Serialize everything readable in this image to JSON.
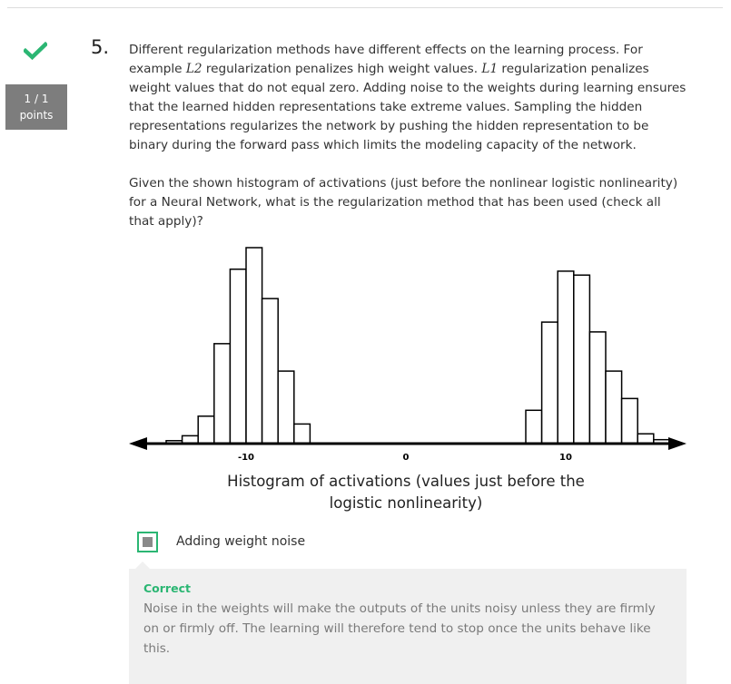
{
  "status": {
    "icon": "checkmark-icon",
    "points_score": "1 / 1",
    "points_unit": "points",
    "accent_color": "#2bb673"
  },
  "question": {
    "number": "5.",
    "p1_part1": "Different regularization methods have different effects on the learning process. For example ",
    "p1_math1": "L2",
    "p1_part2": " regularization penalizes high weight values. ",
    "p1_math2": "L1",
    "p1_part3": " regularization penalizes weight values that do not equal zero. Adding noise to the weights during learning ensures that the learned hidden representations take extreme values. Sampling the hidden representations regularizes the network by pushing the hidden representation to be binary during the forward pass which limits the modeling capacity of the network.",
    "p2": "Given the shown histogram of activations (just before the nonlinear logistic nonlinearity) for a Neural Network, what is the regularization method that has been used (check all that apply)?"
  },
  "histogram": {
    "caption_line1": "Histogram of activations (values just before the",
    "caption_line2": "logistic nonlinearity)",
    "x_ticks": [
      -10,
      0,
      10
    ],
    "tick_labels": [
      "-10",
      "0",
      "10"
    ],
    "bin_width": 1,
    "left_cluster": {
      "start": -15,
      "heights": [
        0.015,
        0.04,
        0.14,
        0.51,
        0.89,
        1.0,
        0.74,
        0.37,
        0.1
      ]
    },
    "right_cluster": {
      "start": 7.5,
      "heights": [
        0.17,
        0.62,
        0.88,
        0.86,
        0.57,
        0.37,
        0.23,
        0.05,
        0.02
      ]
    }
  },
  "answer": {
    "option_label": "Adding weight noise",
    "selected": true
  },
  "feedback": {
    "status": "Correct",
    "text": "Noise in the weights will make the outputs of the units noisy unless they are firmly on or firmly off. The learning will therefore tend to stop once the units behave like this."
  }
}
